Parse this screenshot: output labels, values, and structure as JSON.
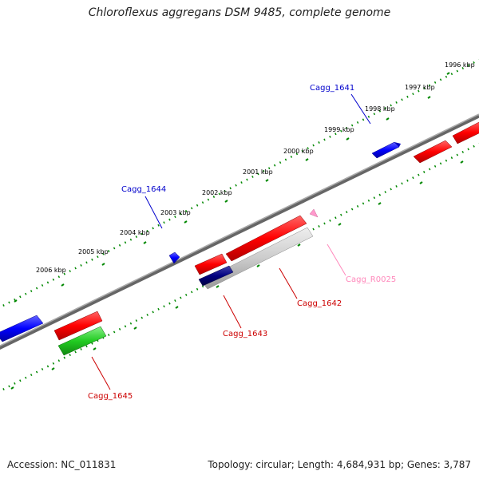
{
  "title": "Chloroflexus aggregans DSM 9485, complete genome",
  "footer": {
    "accession": "Accession: NC_011831",
    "summary": "Topology: circular; Length: 4,684,931 bp; Genes: 3,787"
  },
  "ticks": [
    "1996 kbp",
    "1997 kbp",
    "1998 kbp",
    "1999 kbp",
    "2000 kbp",
    "2001 kbp",
    "2002 kbp",
    "2003 kbp",
    "2004 kbp",
    "2005 kbp",
    "2006 kbp"
  ],
  "gene_labels": [
    "Cagg_1641",
    "Cagg_1644",
    "Cagg_R0025",
    "Cagg_1642",
    "Cagg_1643",
    "Cagg_1645"
  ],
  "colors": {
    "forward_gene": "#ff0000",
    "reverse_gene": "#0000ff",
    "rna_gene": "#ff99cc",
    "highlight_gene": "#00cc00",
    "tick_dots": "#008800",
    "backbone": "#888888"
  }
}
